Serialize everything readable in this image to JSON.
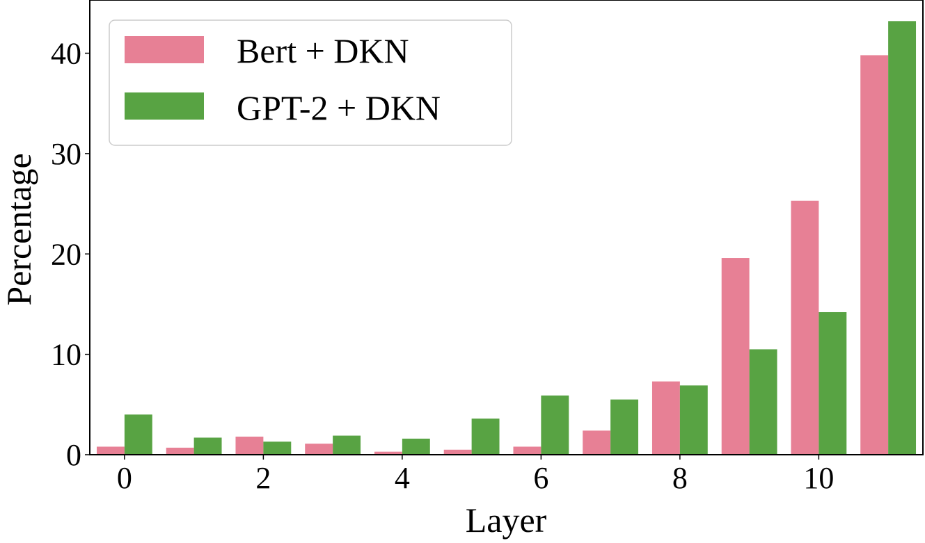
{
  "chart_data": {
    "type": "bar",
    "xlabel": "Layer",
    "ylabel": "Percentage",
    "ylim": [
      0,
      45.3
    ],
    "xlim": [
      -0.5,
      11.5
    ],
    "x": [
      0,
      1,
      2,
      3,
      4,
      5,
      6,
      7,
      8,
      9,
      10,
      11
    ],
    "xticks": [
      "0",
      "2",
      "4",
      "6",
      "8",
      "10"
    ],
    "yticks": [
      "0",
      "10",
      "20",
      "30",
      "40"
    ],
    "legend": "top-left",
    "grid": false,
    "series": [
      {
        "name": "Bert + DKN",
        "color": "#e78095",
        "values": [
          0.8,
          0.7,
          1.8,
          1.1,
          0.3,
          0.5,
          0.8,
          2.4,
          7.3,
          19.6,
          25.3,
          39.8
        ]
      },
      {
        "name": "GPT-2 + DKN",
        "color": "#58a343",
        "values": [
          4.0,
          1.7,
          1.3,
          1.9,
          1.6,
          3.6,
          5.9,
          5.5,
          6.9,
          10.5,
          14.2,
          43.2
        ]
      }
    ]
  }
}
